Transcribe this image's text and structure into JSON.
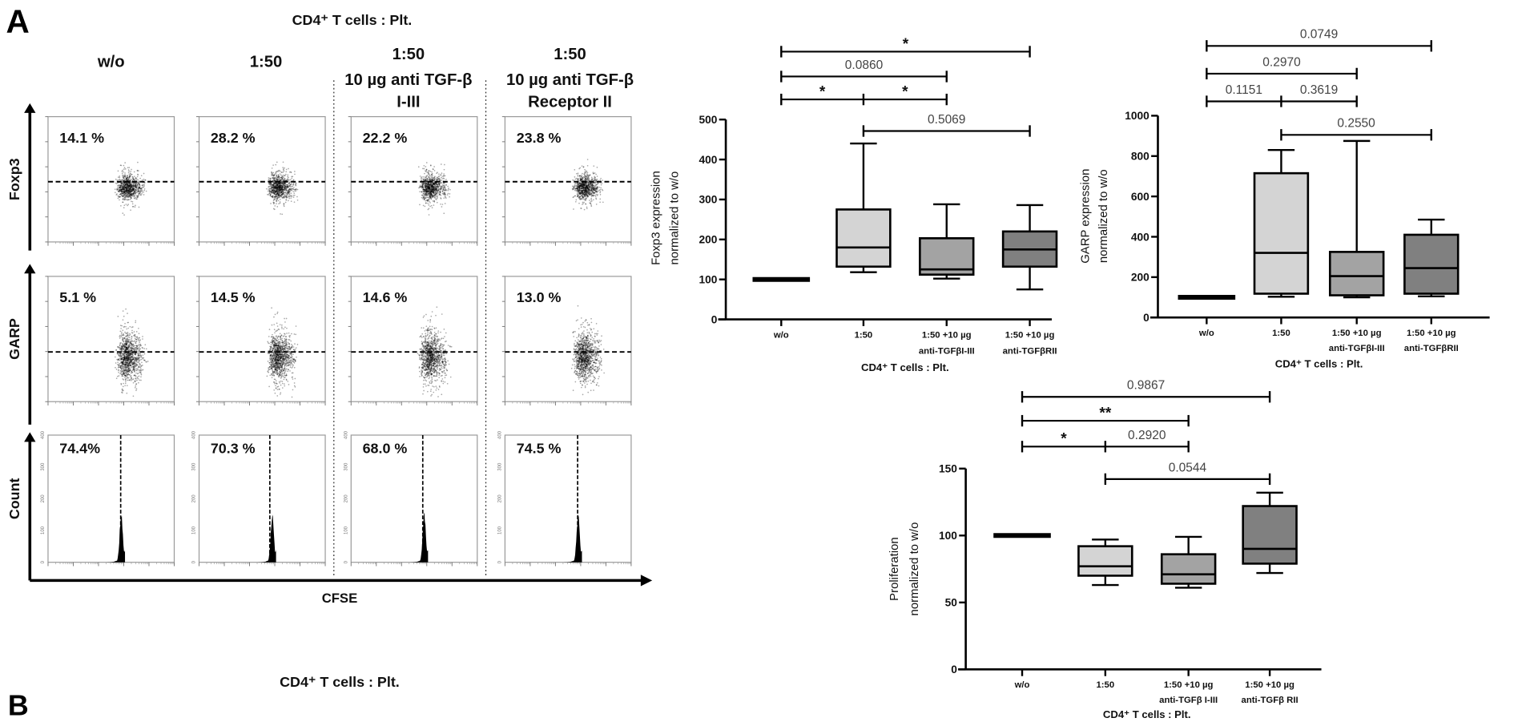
{
  "panel_labels": {
    "a": "A",
    "b": "B"
  },
  "flow": {
    "title": "CD4⁺ T cells : Plt.",
    "columns": [
      {
        "lines": [
          "w/o"
        ]
      },
      {
        "lines": [
          "1:50"
        ]
      },
      {
        "lines": [
          "1:50",
          "10 µg anti TGF-β",
          "I-III"
        ]
      },
      {
        "lines": [
          "1:50",
          "10 µg anti TGF-β",
          "Receptor II"
        ]
      }
    ],
    "rows": [
      {
        "label": "Foxp3",
        "values": [
          "14.1 %",
          "28.2 %",
          "22.2 %",
          "23.8 %"
        ]
      },
      {
        "label": "GARP",
        "values": [
          "5.1 %",
          "14.5 %",
          "14.6 %",
          "13.0 %"
        ]
      },
      {
        "label": "Count",
        "values": [
          "74.4%",
          "70.3 %",
          "68.0 %",
          "74.5 %"
        ]
      }
    ],
    "x_label": "CFSE",
    "count_ticks": [
      "0",
      "100",
      "200",
      "300",
      "400"
    ]
  },
  "panel_b": {
    "title": "CD4⁺ T cells : Plt."
  },
  "chart_data": [
    {
      "type": "box",
      "ylabel": [
        "Foxp3 expression",
        "normalized to w/o"
      ],
      "xlabel": "CD4⁺ T cells : Plt.",
      "ylim": [
        0,
        500
      ],
      "yticks": [
        "0",
        "100",
        "200",
        "300",
        "400",
        "500"
      ],
      "categories": [
        [
          "w/o"
        ],
        [
          "1:50"
        ],
        [
          "1:50 +10 µg",
          "anti-TGFβI-III"
        ],
        [
          "1:50 +10 µg",
          "anti-TGFβRII"
        ]
      ],
      "boxes": [
        {
          "min": 100,
          "q1": 100,
          "median": 100,
          "q3": 100,
          "max": 100
        },
        {
          "min": 118,
          "q1": 132,
          "median": 180,
          "q3": 275,
          "max": 440
        },
        {
          "min": 102,
          "q1": 112,
          "median": 125,
          "q3": 203,
          "max": 288
        },
        {
          "min": 75,
          "q1": 132,
          "median": 175,
          "q3": 220,
          "max": 286
        }
      ],
      "colors": [
        "#000000",
        "#d4d4d4",
        "#a3a3a3",
        "#808080"
      ],
      "comparisons": [
        {
          "groups": [
            0,
            3
          ],
          "labels": [
            "*"
          ]
        },
        {
          "groups": [
            0,
            2
          ],
          "labels": [
            "0.0860"
          ]
        },
        {
          "groups": [
            0,
            1,
            2
          ],
          "labels": [
            "*",
            "*"
          ]
        },
        {
          "groups": [
            1,
            3
          ],
          "labels": [
            "0.5069"
          ]
        }
      ]
    },
    {
      "type": "box",
      "ylabel": [
        "GARP expression",
        "normalized to w/o"
      ],
      "xlabel": "CD4⁺ T cells : Plt.",
      "ylim": [
        0,
        1000
      ],
      "yticks": [
        "0",
        "200",
        "400",
        "600",
        "800",
        "1000"
      ],
      "categories": [
        [
          "w/o"
        ],
        [
          "1:50"
        ],
        [
          "1:50 +10 µg",
          "anti-TGFβI-III"
        ],
        [
          "1:50 +10 µg",
          "anti-TGFβRII"
        ]
      ],
      "boxes": [
        {
          "min": 100,
          "q1": 100,
          "median": 100,
          "q3": 100,
          "max": 100
        },
        {
          "min": 103,
          "q1": 118,
          "median": 320,
          "q3": 715,
          "max": 830
        },
        {
          "min": 100,
          "q1": 110,
          "median": 205,
          "q3": 325,
          "max": 875
        },
        {
          "min": 105,
          "q1": 118,
          "median": 245,
          "q3": 410,
          "max": 485
        }
      ],
      "colors": [
        "#000000",
        "#d4d4d4",
        "#a3a3a3",
        "#808080"
      ],
      "comparisons": [
        {
          "groups": [
            0,
            3
          ],
          "labels": [
            "0.0749"
          ]
        },
        {
          "groups": [
            0,
            2
          ],
          "labels": [
            "0.2970"
          ]
        },
        {
          "groups": [
            0,
            1,
            2
          ],
          "labels": [
            "0.1151",
            "0.3619"
          ]
        },
        {
          "groups": [
            1,
            3
          ],
          "labels": [
            "0.2550"
          ]
        }
      ]
    },
    {
      "type": "box",
      "ylabel": [
        "Proliferation",
        "normalized to w/o"
      ],
      "xlabel": "CD4⁺ T cells : Plt.",
      "ylim": [
        0,
        150
      ],
      "yticks": [
        "0",
        "50",
        "100",
        "150"
      ],
      "categories": [
        [
          "w/o"
        ],
        [
          "1:50"
        ],
        [
          "1:50 +10 µg",
          "anti-TGFβ I-III"
        ],
        [
          "1:50 +10 µg",
          "anti-TGFβ RII"
        ]
      ],
      "boxes": [
        {
          "min": 100,
          "q1": 100,
          "median": 100,
          "q3": 100,
          "max": 100
        },
        {
          "min": 63,
          "q1": 70,
          "median": 77,
          "q3": 92,
          "max": 97
        },
        {
          "min": 61,
          "q1": 64,
          "median": 71,
          "q3": 86,
          "max": 99
        },
        {
          "min": 72,
          "q1": 79,
          "median": 90,
          "q3": 122,
          "max": 132
        }
      ],
      "colors": [
        "#000000",
        "#d4d4d4",
        "#a3a3a3",
        "#808080"
      ],
      "comparisons": [
        {
          "groups": [
            0,
            3
          ],
          "labels": [
            "0.9867"
          ]
        },
        {
          "groups": [
            0,
            2
          ],
          "labels": [
            "**"
          ]
        },
        {
          "groups": [
            0,
            1,
            2
          ],
          "labels": [
            "*",
            "0.2920"
          ]
        },
        {
          "groups": [
            1,
            3
          ],
          "labels": [
            "0.0544"
          ]
        }
      ]
    }
  ]
}
